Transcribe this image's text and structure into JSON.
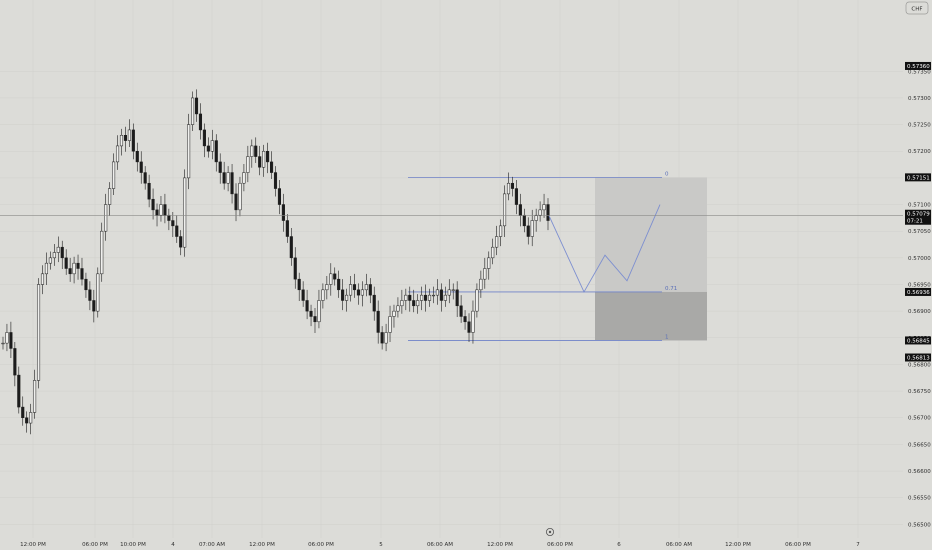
{
  "currency_badge": "CHF",
  "chart_data": {
    "type": "candlestick",
    "ylim": [
      0.5648,
      0.5748
    ],
    "y_ticks": [
      "0.57350",
      "0.57300",
      "0.57250",
      "0.57200",
      "0.57150",
      "0.57100",
      "0.57050",
      "0.57000",
      "0.56950",
      "0.56900",
      "0.56850",
      "0.56800",
      "0.56750",
      "0.56700",
      "0.56650",
      "0.56600",
      "0.56550",
      "0.56500"
    ],
    "x_ticks": [
      "12:00 PM",
      "06:00 PM",
      "10:00 PM",
      "4",
      "07:00 AM",
      "12:00 PM",
      "06:00 PM",
      "5",
      "06:00 AM",
      "12:00 PM",
      "06:00 PM",
      "6",
      "06:00 AM",
      "12:00 PM",
      "06:00 PM",
      "7"
    ],
    "price_badges": [
      {
        "value": "0.57360",
        "color": "#111111"
      },
      {
        "value": "0.57151",
        "color": "#111111"
      },
      {
        "value": "0.57079",
        "color": "#111111"
      },
      {
        "value": "07:21",
        "color": "#111111"
      },
      {
        "value": "0.56936",
        "color": "#111111"
      },
      {
        "value": "0.56845",
        "color": "#111111"
      },
      {
        "value": "0.56813",
        "color": "#111111"
      }
    ],
    "current_price": 0.57079,
    "fib_levels": [
      {
        "label": "0",
        "price": 0.57151
      },
      {
        "label": "0.71",
        "price": 0.56936
      },
      {
        "label": "1",
        "price": 0.56845
      }
    ],
    "zones": [
      {
        "top": 0.57151,
        "bottom": 0.56936,
        "color": "#c9c9c7"
      },
      {
        "top": 0.56936,
        "bottom": 0.56845,
        "color": "#a9a9a7"
      }
    ],
    "projection_path": [
      0.57079,
      0.56936,
      0.57005,
      0.56957,
      0.571
    ],
    "series": [
      {
        "name": "",
        "close": [
          0.5684,
          0.5686,
          0.5683,
          0.5678,
          0.5672,
          0.567,
          0.5669,
          0.5671,
          0.5677,
          0.5695,
          0.5697,
          0.5699,
          0.57,
          0.5701,
          0.5702,
          0.57,
          0.5698,
          0.5697,
          0.5699,
          0.5698,
          0.5696,
          0.5694,
          0.5692,
          0.569,
          0.5697,
          0.5705,
          0.571,
          0.5713,
          0.5718,
          0.5721,
          0.5723,
          0.5722,
          0.5724,
          0.572,
          0.5718,
          0.5716,
          0.5714,
          0.5711,
          0.5709,
          0.5708,
          0.571,
          0.5708,
          0.5707,
          0.5706,
          0.5704,
          0.5702,
          0.5715,
          0.5725,
          0.573,
          0.5727,
          0.5724,
          0.5721,
          0.572,
          0.5722,
          0.5718,
          0.5716,
          0.5714,
          0.5716,
          0.5712,
          0.5709,
          0.5714,
          0.5716,
          0.5719,
          0.5721,
          0.5719,
          0.5717,
          0.572,
          0.5718,
          0.5716,
          0.5713,
          0.571,
          0.5707,
          0.5704,
          0.57,
          0.5696,
          0.5694,
          0.5692,
          0.569,
          0.5689,
          0.5688,
          0.5692,
          0.5694,
          0.5695,
          0.5697,
          0.5696,
          0.5694,
          0.5692,
          0.5693,
          0.5695,
          0.5694,
          0.5693,
          0.5694,
          0.5695,
          0.5693,
          0.569,
          0.5686,
          0.5684,
          0.5686,
          0.5689,
          0.569,
          0.5691,
          0.5692,
          0.5693,
          0.5692,
          0.5691,
          0.5692,
          0.5693,
          0.5692,
          0.5693,
          0.5693,
          0.5694,
          0.5692,
          0.5693,
          0.5694,
          0.5694,
          0.5691,
          0.5689,
          0.5688,
          0.5686,
          0.569,
          0.5694,
          0.5696,
          0.5698,
          0.57,
          0.5702,
          0.5704,
          0.5706,
          0.5712,
          0.5714,
          0.5713,
          0.571,
          0.5708,
          0.5706,
          0.5704,
          0.5707,
          0.5708,
          0.5709,
          0.571,
          0.5707
        ]
      }
    ]
  }
}
